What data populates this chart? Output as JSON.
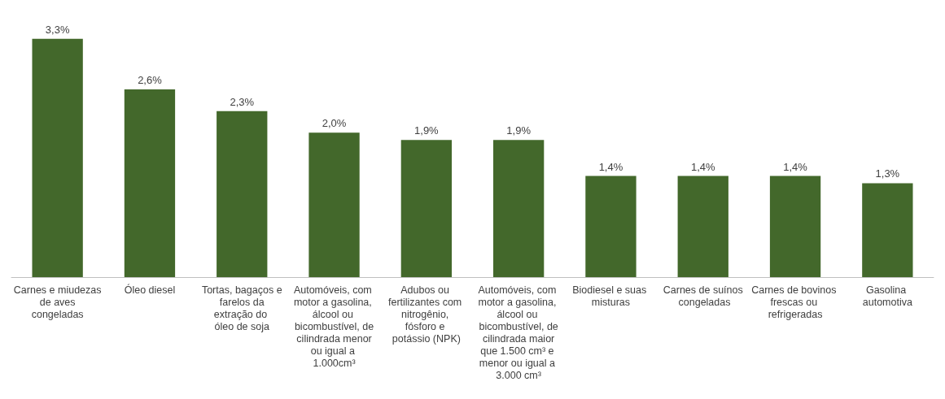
{
  "chart_data": {
    "type": "bar",
    "categories": [
      "Carnes e miudezas de aves congeladas",
      "Óleo diesel",
      "Tortas, bagaços e farelos da extração do óleo de soja",
      "Automóveis, com motor a gasolina, álcool ou bicombustível, de cilindrada menor ou igual a 1.000cm³",
      "Adubos ou fertilizantes com nitrogênio, fósforo e potássio (NPK)",
      "Automóveis, com motor a gasolina, álcool ou bicombustível, de cilindrada maior que 1.500 cm³ e menor ou igual a 3.000 cm³",
      "Biodiesel e suas misturas",
      "Carnes de suínos congeladas",
      "Carnes de bovinos frescas ou refrigeradas",
      "Gasolina automotiva"
    ],
    "values": [
      3.3,
      2.6,
      2.3,
      2.0,
      1.9,
      1.9,
      1.4,
      1.4,
      1.4,
      1.3
    ],
    "value_labels": [
      "3,3%",
      "2,6%",
      "2,3%",
      "2,0%",
      "1,9%",
      "1,9%",
      "1,4%",
      "1,4%",
      "1,4%",
      "1,3%"
    ],
    "color": "#43682b",
    "grid": false,
    "tick_labels": "x"
  }
}
